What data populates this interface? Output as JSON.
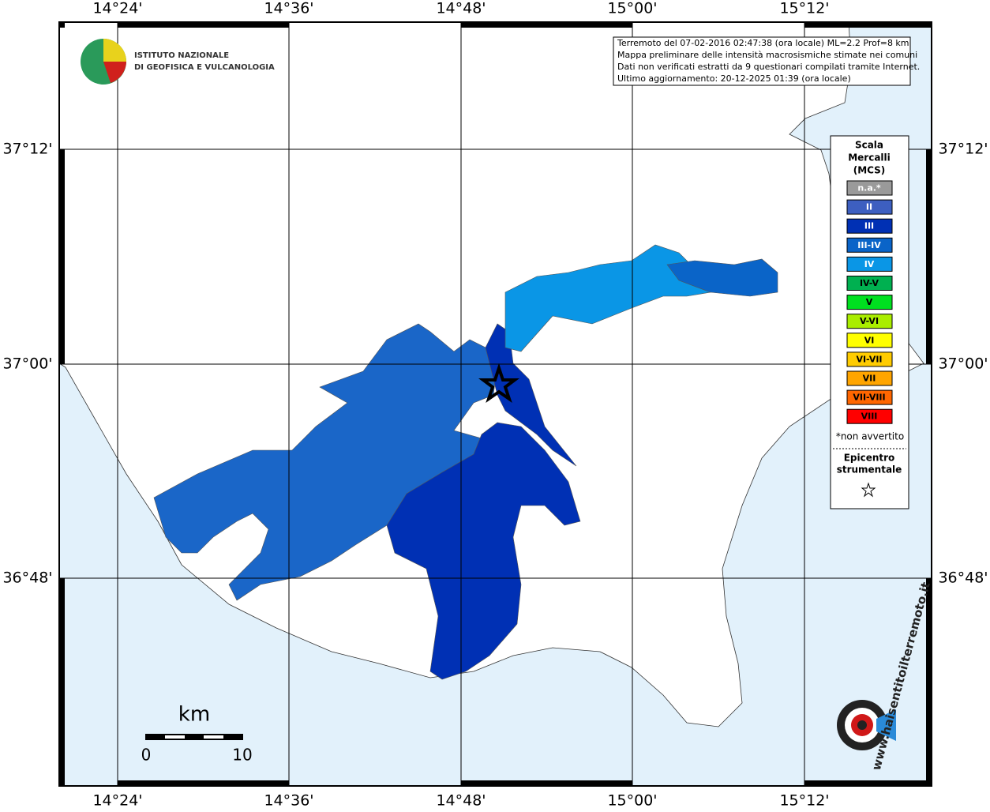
{
  "header": {
    "institute": [
      "ISTITUTO NAZIONALE",
      "DI GEOFISICA E VULCANOLOGIA"
    ]
  },
  "info": [
    "Terremoto del 07-02-2016 02:47:38 (ora locale) ML=2.2 Prof=8 km",
    "Mappa preliminare delle intensità macrosismiche stimate nei comuni",
    "Dati non verificati estratti da 9 questionari compilati tramite Internet.",
    "Ultimo aggiornamento: 20-12-2025 01:39 (ora locale)"
  ],
  "longitudes": [
    "14°24'",
    "14°36'",
    "14°48'",
    "15°00'",
    "15°12'"
  ],
  "latitudes": [
    "37°12'",
    "37°00'",
    "36°48'"
  ],
  "legend": {
    "title": [
      "Scala",
      "Mercalli",
      "(MCS)"
    ],
    "items": [
      {
        "label": "n.a.*",
        "color": "#9a9a9a"
      },
      {
        "label": "II",
        "color": "#3d5fc0"
      },
      {
        "label": "III",
        "color": "#0030b4"
      },
      {
        "label": "III-IV",
        "color": "#0a64c8"
      },
      {
        "label": "IV",
        "color": "#0a96e6"
      },
      {
        "label": "IV-V",
        "color": "#00b050"
      },
      {
        "label": "V",
        "color": "#00e020"
      },
      {
        "label": "V-VI",
        "color": "#aaee00"
      },
      {
        "label": "VI",
        "color": "#ffff00"
      },
      {
        "label": "VI-VII",
        "color": "#ffcc00"
      },
      {
        "label": "VII",
        "color": "#ffa500"
      },
      {
        "label": "VII-VIII",
        "color": "#ff6600"
      },
      {
        "label": "VIII",
        "color": "#ff0000"
      }
    ],
    "note": "*non avvertito",
    "epicenter": [
      "Epicentro",
      "strumentale"
    ]
  },
  "scale_bar": {
    "unit": "km",
    "start": "0",
    "end": "10"
  },
  "site_logo": "www.haisentitoilterremoto.it"
}
